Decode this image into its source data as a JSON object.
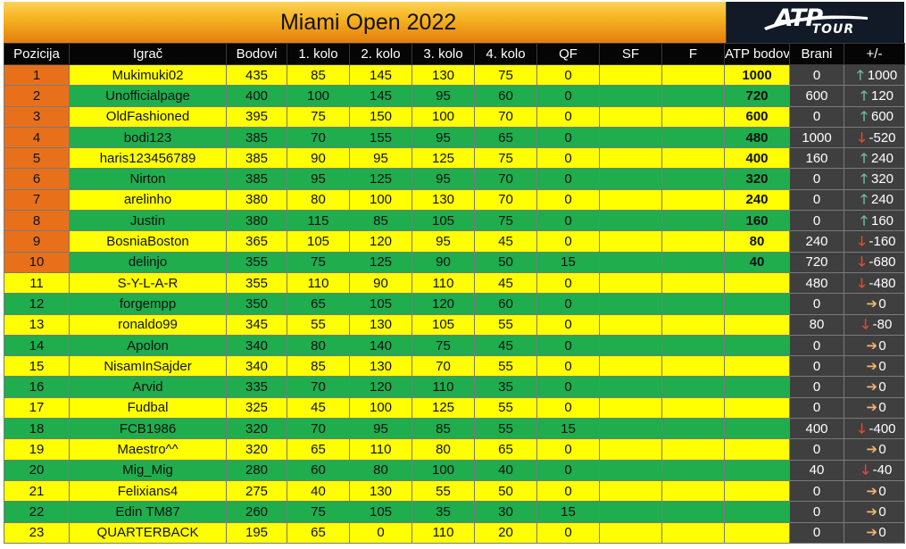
{
  "title": "Miami Open 2022",
  "logo": {
    "word": "ATP",
    "sub": "TOUR"
  },
  "colors": {
    "yellow_row": "#ffff00",
    "green_row": "#1fad4e",
    "position_orange": "#e8701b",
    "dark_cell": "#3f3f3f",
    "up_arrow": "#6fb6a2",
    "down_arrow": "#e8482c",
    "neutral_arrow": "#f4b56a"
  },
  "columns": [
    "Pozicija",
    "Igrač",
    "Bodovi",
    "1. kolo",
    "2. kolo",
    "3. kolo",
    "4. kolo",
    "QF",
    "SF",
    "F",
    "ATP bodovi",
    "Brani",
    "+/-"
  ],
  "rows": [
    {
      "pos": "1",
      "player": "Mukimuki02",
      "points": "435",
      "r1": "85",
      "r2": "145",
      "r3": "130",
      "r4": "75",
      "qf": "0",
      "sf": "",
      "f": "",
      "atp": "1000",
      "brani": "0",
      "diff": "1000",
      "trend": "up",
      "color": "yellow",
      "top10": true
    },
    {
      "pos": "2",
      "player": "Unofficialpage",
      "points": "400",
      "r1": "100",
      "r2": "145",
      "r3": "95",
      "r4": "60",
      "qf": "0",
      "sf": "",
      "f": "",
      "atp": "720",
      "brani": "600",
      "diff": "120",
      "trend": "up",
      "color": "green",
      "top10": true
    },
    {
      "pos": "3",
      "player": "OldFashioned",
      "points": "395",
      "r1": "75",
      "r2": "150",
      "r3": "100",
      "r4": "70",
      "qf": "0",
      "sf": "",
      "f": "",
      "atp": "600",
      "brani": "0",
      "diff": "600",
      "trend": "up",
      "color": "yellow",
      "top10": true
    },
    {
      "pos": "4",
      "player": "bodi123",
      "points": "385",
      "r1": "70",
      "r2": "155",
      "r3": "95",
      "r4": "65",
      "qf": "0",
      "sf": "",
      "f": "",
      "atp": "480",
      "brani": "1000",
      "diff": "-520",
      "trend": "down",
      "color": "green",
      "top10": true
    },
    {
      "pos": "5",
      "player": "haris123456789",
      "points": "385",
      "r1": "90",
      "r2": "95",
      "r3": "125",
      "r4": "75",
      "qf": "0",
      "sf": "",
      "f": "",
      "atp": "400",
      "brani": "160",
      "diff": "240",
      "trend": "up",
      "color": "yellow",
      "top10": true
    },
    {
      "pos": "6",
      "player": "Nirton",
      "points": "385",
      "r1": "95",
      "r2": "125",
      "r3": "95",
      "r4": "70",
      "qf": "0",
      "sf": "",
      "f": "",
      "atp": "320",
      "brani": "0",
      "diff": "320",
      "trend": "up",
      "color": "green",
      "top10": true
    },
    {
      "pos": "7",
      "player": "arelinho",
      "points": "380",
      "r1": "80",
      "r2": "100",
      "r3": "130",
      "r4": "70",
      "qf": "0",
      "sf": "",
      "f": "",
      "atp": "240",
      "brani": "0",
      "diff": "240",
      "trend": "up",
      "color": "yellow",
      "top10": true
    },
    {
      "pos": "8",
      "player": "Justin",
      "points": "380",
      "r1": "115",
      "r2": "85",
      "r3": "105",
      "r4": "75",
      "qf": "0",
      "sf": "",
      "f": "",
      "atp": "160",
      "brani": "0",
      "diff": "160",
      "trend": "up",
      "color": "green",
      "top10": true
    },
    {
      "pos": "9",
      "player": "BosniaBoston",
      "points": "365",
      "r1": "105",
      "r2": "120",
      "r3": "95",
      "r4": "45",
      "qf": "0",
      "sf": "",
      "f": "",
      "atp": "80",
      "brani": "240",
      "diff": "-160",
      "trend": "down",
      "color": "yellow",
      "top10": true
    },
    {
      "pos": "10",
      "player": "delinjo",
      "points": "355",
      "r1": "75",
      "r2": "125",
      "r3": "90",
      "r4": "50",
      "qf": "15",
      "sf": "",
      "f": "",
      "atp": "40",
      "brani": "720",
      "diff": "-680",
      "trend": "down",
      "color": "green",
      "top10": true
    },
    {
      "pos": "11",
      "player": "S-Y-L-A-R",
      "points": "355",
      "r1": "110",
      "r2": "90",
      "r3": "110",
      "r4": "45",
      "qf": "0",
      "sf": "",
      "f": "",
      "atp": "",
      "brani": "480",
      "diff": "-480",
      "trend": "down",
      "color": "yellow",
      "top10": false
    },
    {
      "pos": "12",
      "player": "forgempp",
      "points": "350",
      "r1": "65",
      "r2": "105",
      "r3": "120",
      "r4": "60",
      "qf": "0",
      "sf": "",
      "f": "",
      "atp": "",
      "brani": "0",
      "diff": "0",
      "trend": "right",
      "color": "green",
      "top10": false
    },
    {
      "pos": "13",
      "player": "ronaldo99",
      "points": "345",
      "r1": "55",
      "r2": "130",
      "r3": "105",
      "r4": "55",
      "qf": "0",
      "sf": "",
      "f": "",
      "atp": "",
      "brani": "80",
      "diff": "-80",
      "trend": "down",
      "color": "yellow",
      "top10": false
    },
    {
      "pos": "14",
      "player": "Apolon",
      "points": "340",
      "r1": "80",
      "r2": "140",
      "r3": "75",
      "r4": "45",
      "qf": "0",
      "sf": "",
      "f": "",
      "atp": "",
      "brani": "0",
      "diff": "0",
      "trend": "right",
      "color": "green",
      "top10": false
    },
    {
      "pos": "15",
      "player": "NisamInSajder",
      "points": "340",
      "r1": "85",
      "r2": "130",
      "r3": "70",
      "r4": "55",
      "qf": "0",
      "sf": "",
      "f": "",
      "atp": "",
      "brani": "0",
      "diff": "0",
      "trend": "right",
      "color": "yellow",
      "top10": false
    },
    {
      "pos": "16",
      "player": "Arvid",
      "points": "335",
      "r1": "70",
      "r2": "120",
      "r3": "110",
      "r4": "35",
      "qf": "0",
      "sf": "",
      "f": "",
      "atp": "",
      "brani": "0",
      "diff": "0",
      "trend": "right",
      "color": "green",
      "top10": false
    },
    {
      "pos": "17",
      "player": "Fudbal",
      "points": "325",
      "r1": "45",
      "r2": "100",
      "r3": "125",
      "r4": "55",
      "qf": "0",
      "sf": "",
      "f": "",
      "atp": "",
      "brani": "0",
      "diff": "0",
      "trend": "right",
      "color": "yellow",
      "top10": false
    },
    {
      "pos": "18",
      "player": "FCB1986",
      "points": "320",
      "r1": "70",
      "r2": "95",
      "r3": "85",
      "r4": "55",
      "qf": "15",
      "sf": "",
      "f": "",
      "atp": "",
      "brani": "400",
      "diff": "-400",
      "trend": "down",
      "color": "green",
      "top10": false
    },
    {
      "pos": "19",
      "player": "Maestro^^",
      "points": "320",
      "r1": "65",
      "r2": "110",
      "r3": "80",
      "r4": "65",
      "qf": "0",
      "sf": "",
      "f": "",
      "atp": "",
      "brani": "0",
      "diff": "0",
      "trend": "right",
      "color": "yellow",
      "top10": false
    },
    {
      "pos": "20",
      "player": "Mig_Mig",
      "points": "280",
      "r1": "60",
      "r2": "80",
      "r3": "100",
      "r4": "40",
      "qf": "0",
      "sf": "",
      "f": "",
      "atp": "",
      "brani": "40",
      "diff": "-40",
      "trend": "down",
      "color": "green",
      "top10": false
    },
    {
      "pos": "21",
      "player": "Felixians4",
      "points": "275",
      "r1": "40",
      "r2": "130",
      "r3": "55",
      "r4": "50",
      "qf": "0",
      "sf": "",
      "f": "",
      "atp": "",
      "brani": "0",
      "diff": "0",
      "trend": "right",
      "color": "yellow",
      "top10": false
    },
    {
      "pos": "22",
      "player": "Edin TM87",
      "points": "260",
      "r1": "75",
      "r2": "105",
      "r3": "35",
      "r4": "30",
      "qf": "15",
      "sf": "",
      "f": "",
      "atp": "",
      "brani": "0",
      "diff": "0",
      "trend": "right",
      "color": "green",
      "top10": false
    },
    {
      "pos": "23",
      "player": "QUARTERBACK",
      "points": "195",
      "r1": "65",
      "r2": "0",
      "r3": "110",
      "r4": "20",
      "qf": "0",
      "sf": "",
      "f": "",
      "atp": "",
      "brani": "0",
      "diff": "0",
      "trend": "right",
      "color": "yellow",
      "top10": false
    }
  ]
}
